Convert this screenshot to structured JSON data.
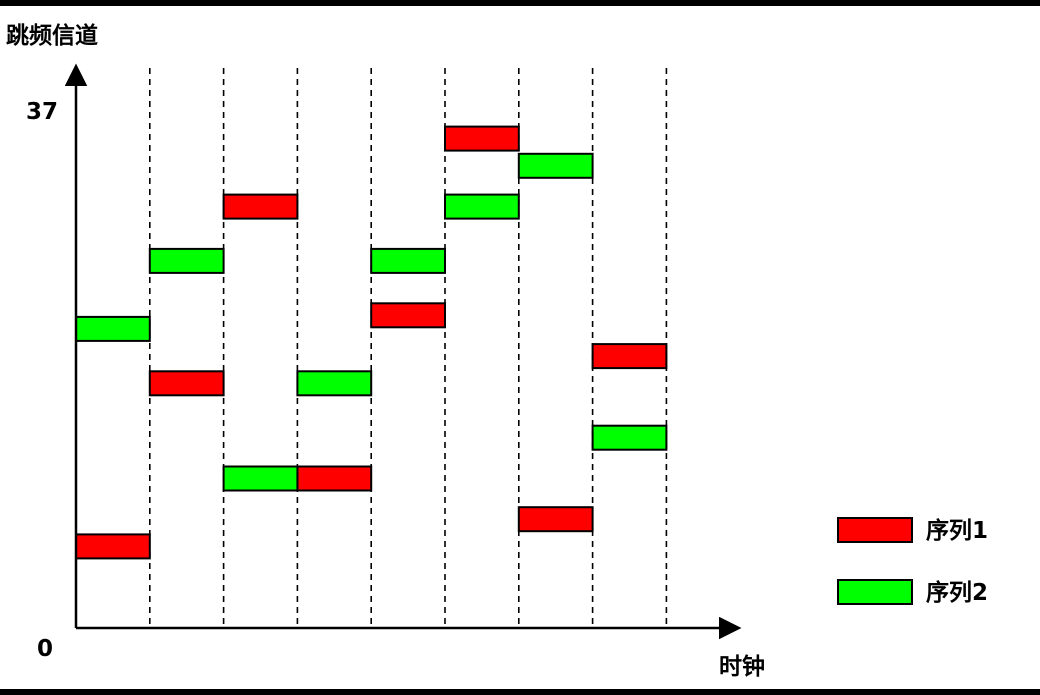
{
  "diagram": {
    "y_axis_label": "跳频信道",
    "x_axis_label": "时钟",
    "y_max_label": "37",
    "origin_label": "0",
    "y_min": 0,
    "y_max": 37,
    "slot_count": 8,
    "dividers_after_slot": [
      1,
      2,
      3,
      4,
      5,
      6,
      7,
      8
    ]
  },
  "colors": {
    "series1": "#ff0000",
    "series2": "#00ff00",
    "stroke": "#000000"
  },
  "legend": {
    "items": [
      {
        "label": "序列1",
        "color": "#ff0000"
      },
      {
        "label": "序列2",
        "color": "#00ff00"
      }
    ]
  },
  "series": [
    {
      "name": "序列1",
      "color": "#ff0000",
      "blocks": [
        {
          "slot": 1,
          "channel": 6
        },
        {
          "slot": 2,
          "channel": 18
        },
        {
          "slot": 3,
          "channel": 31
        },
        {
          "slot": 4,
          "channel": 11
        },
        {
          "slot": 5,
          "channel": 23
        },
        {
          "slot": 6,
          "channel": 36
        },
        {
          "slot": 7,
          "channel": 8
        },
        {
          "slot": 8,
          "channel": 20
        }
      ]
    },
    {
      "name": "序列2",
      "color": "#00ff00",
      "blocks": [
        {
          "slot": 1,
          "channel": 22
        },
        {
          "slot": 2,
          "channel": 27
        },
        {
          "slot": 3,
          "channel": 11
        },
        {
          "slot": 4,
          "channel": 18
        },
        {
          "slot": 5,
          "channel": 27
        },
        {
          "slot": 6,
          "channel": 31
        },
        {
          "slot": 7,
          "channel": 34
        },
        {
          "slot": 8,
          "channel": 14
        }
      ]
    }
  ]
}
